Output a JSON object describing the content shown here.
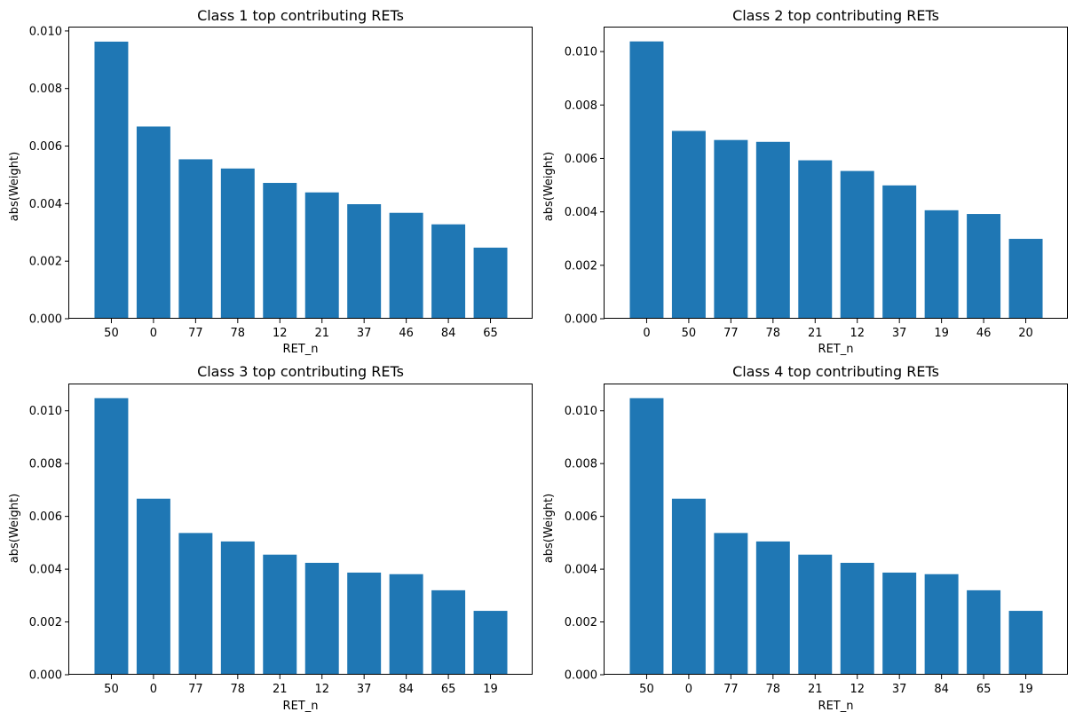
{
  "chart_data": [
    {
      "type": "bar",
      "title": "Class 1 top contributing RETs",
      "xlabel": "RET_n",
      "ylabel": "abs(Weight)",
      "categories": [
        "50",
        "0",
        "77",
        "78",
        "12",
        "21",
        "37",
        "46",
        "84",
        "65"
      ],
      "values": [
        0.00963,
        0.00668,
        0.00554,
        0.00522,
        0.00472,
        0.00439,
        0.00398,
        0.00368,
        0.00328,
        0.00247
      ],
      "ylim": [
        0,
        0.01012
      ],
      "yticks": [
        0.0,
        0.002,
        0.004,
        0.006,
        0.008,
        0.01
      ],
      "ytick_labels": [
        "0.000",
        "0.002",
        "0.004",
        "0.006",
        "0.008",
        "0.010"
      ],
      "color": "#1f77b4",
      "grid": false
    },
    {
      "type": "bar",
      "title": "Class 2 top contributing RETs",
      "xlabel": "RET_n",
      "ylabel": "abs(Weight)",
      "categories": [
        "0",
        "50",
        "77",
        "78",
        "21",
        "12",
        "37",
        "19",
        "46",
        "20"
      ],
      "values": [
        0.01038,
        0.00703,
        0.00669,
        0.00662,
        0.00593,
        0.00553,
        0.00499,
        0.00406,
        0.00392,
        0.00299
      ],
      "ylim": [
        0,
        0.0109
      ],
      "yticks": [
        0.0,
        0.002,
        0.004,
        0.006,
        0.008,
        0.01
      ],
      "ytick_labels": [
        "0.000",
        "0.002",
        "0.004",
        "0.006",
        "0.008",
        "0.010"
      ],
      "color": "#1f77b4",
      "grid": false
    },
    {
      "type": "bar",
      "title": "Class 3 top contributing RETs",
      "xlabel": "RET_n",
      "ylabel": "abs(Weight)",
      "categories": [
        "50",
        "0",
        "77",
        "78",
        "21",
        "12",
        "37",
        "84",
        "65",
        "19"
      ],
      "values": [
        0.01048,
        0.00667,
        0.00537,
        0.00505,
        0.00455,
        0.00424,
        0.00387,
        0.00381,
        0.0032,
        0.00242
      ],
      "ylim": [
        0,
        0.011
      ],
      "yticks": [
        0.0,
        0.002,
        0.004,
        0.006,
        0.008,
        0.01
      ],
      "ytick_labels": [
        "0.000",
        "0.002",
        "0.004",
        "0.006",
        "0.008",
        "0.010"
      ],
      "color": "#1f77b4",
      "grid": false
    },
    {
      "type": "bar",
      "title": "Class 4 top contributing RETs",
      "xlabel": "RET_n",
      "ylabel": "abs(Weight)",
      "categories": [
        "50",
        "0",
        "77",
        "78",
        "21",
        "12",
        "37",
        "84",
        "65",
        "19"
      ],
      "values": [
        0.01048,
        0.00667,
        0.00537,
        0.00505,
        0.00455,
        0.00424,
        0.00387,
        0.00381,
        0.0032,
        0.00242
      ],
      "ylim": [
        0,
        0.011
      ],
      "yticks": [
        0.0,
        0.002,
        0.004,
        0.006,
        0.008,
        0.01
      ],
      "ytick_labels": [
        "0.000",
        "0.002",
        "0.004",
        "0.006",
        "0.008",
        "0.010"
      ],
      "color": "#1f77b4",
      "grid": false
    }
  ]
}
